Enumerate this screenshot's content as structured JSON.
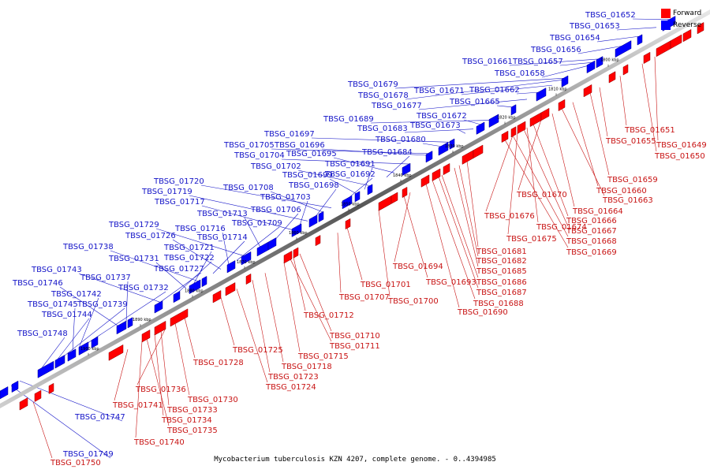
{
  "caption": "Mycobacterium tuberculosis KZN 4207, complete genome. - 0..4394985",
  "legend": {
    "forward": {
      "label": "Forward",
      "color": "#ff0000"
    },
    "reverse": {
      "label": "Reverse",
      "color": "#0000ff"
    }
  },
  "ticks": [
    "1800 kbp",
    "1810 kbp",
    "1820 kbp",
    "1830 kbp",
    "1840 kbp",
    "1850 kbp",
    "1860 kbp",
    "1870 kbp",
    "1880 kbp",
    "1890 kbp",
    "1900 kbp"
  ],
  "reverse_labels": [
    "TBSG_01652",
    "TBSG_01653",
    "TBSG_01654",
    "TBSG_01656",
    "TBSG_01661",
    "TBSG_01657",
    "TBSG_01658",
    "TBSG_01679",
    "TBSG_01678",
    "TBSG_01671",
    "TBSG_01662",
    "TBSG_01677",
    "TBSG_01665",
    "TBSG_01689",
    "TBSG_01672",
    "TBSG_01683",
    "TBSG_01673",
    "TBSG_01697",
    "TBSG_01680",
    "TBSG_01705",
    "TBSG_01696",
    "TBSG_01704",
    "TBSG_01695",
    "TBSG_01684",
    "TBSG_01702",
    "TBSG_01691",
    "TBSG_01699",
    "TBSG_01692",
    "TBSG_01720",
    "TBSG_01708",
    "TBSG_01698",
    "TBSG_01719",
    "TBSG_01703",
    "TBSG_01717",
    "TBSG_01706",
    "TBSG_01713",
    "TBSG_01729",
    "TBSG_01709",
    "TBSG_01716",
    "TBSG_01726",
    "TBSG_01714",
    "TBSG_01738",
    "TBSG_01721",
    "TBSG_01731",
    "TBSG_01722",
    "TBSG_01743",
    "TBSG_01727",
    "TBSG_01737",
    "TBSG_01746",
    "TBSG_01732",
    "TBSG_01742",
    "TBSG_01745",
    "TBSG_01739",
    "TBSG_01744",
    "TBSG_01748",
    "TBSG_01747",
    "TBSG_01749"
  ],
  "forward_labels": [
    "TBSG_01651",
    "TBSG_01655",
    "TBSG_01649",
    "TBSG_01650",
    "TBSG_01659",
    "TBSG_01660",
    "TBSG_01670",
    "TBSG_01663",
    "TBSG_01664",
    "TBSG_01676",
    "TBSG_01666",
    "TBSG_01674",
    "TBSG_01667",
    "TBSG_01675",
    "TBSG_01668",
    "TBSG_01669",
    "TBSG_01681",
    "TBSG_01682",
    "TBSG_01694",
    "TBSG_01685",
    "TBSG_01693",
    "TBSG_01686",
    "TBSG_01701",
    "TBSG_01687",
    "TBSG_01707",
    "TBSG_01700",
    "TBSG_01688",
    "TBSG_01690",
    "TBSG_01712",
    "TBSG_01710",
    "TBSG_01711",
    "TBSG_01725",
    "TBSG_01715",
    "TBSG_01728",
    "TBSG_01718",
    "TBSG_01723",
    "TBSG_01724",
    "TBSG_01736",
    "TBSG_01730",
    "TBSG_01741",
    "TBSG_01733",
    "TBSG_01734",
    "TBSG_01735",
    "TBSG_01740",
    "TBSG_01750"
  ]
}
